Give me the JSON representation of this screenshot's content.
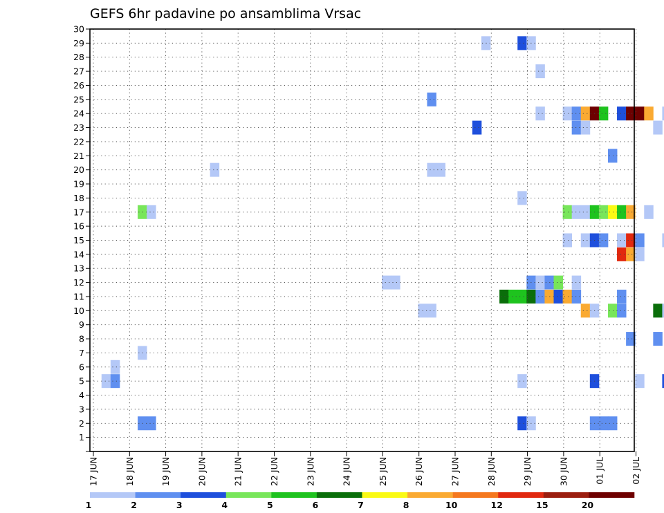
{
  "chart_data": {
    "type": "heatmap",
    "title": "GEFS 6hr padavine po ansamblima Vrsac",
    "xlabel": "",
    "ylabel": "",
    "x_tick_labels": [
      "17 JUN",
      "18 JUN",
      "19 JUN",
      "20 JUN",
      "21 JUN",
      "22 JUN",
      "23 JUN",
      "24 JUN",
      "25 JUN",
      "26 JUN",
      "27 JUN",
      "28 JUN",
      "29 JUN",
      "30 JUN",
      "01 JUL",
      "02 JUL"
    ],
    "x_range_days": [
      0,
      15
    ],
    "y_tick_labels": [
      "1",
      "2",
      "3",
      "4",
      "5",
      "6",
      "7",
      "8",
      "9",
      "10",
      "11",
      "12",
      "13",
      "14",
      "15",
      "16",
      "17",
      "18",
      "19",
      "20",
      "21",
      "22",
      "23",
      "24",
      "25",
      "26",
      "27",
      "28",
      "29",
      "30"
    ],
    "y_range": [
      0,
      30
    ],
    "grid": true,
    "colorbar": {
      "labels": [
        "1",
        "2",
        "3",
        "4",
        "5",
        "6",
        "7",
        "8",
        "10",
        "12",
        "15",
        "20"
      ],
      "colors": [
        "#b4c8f7",
        "#5f8ff0",
        "#1e4fdc",
        "#78e65a",
        "#1ec31e",
        "#0a6e0a",
        "#fafa14",
        "#faaa32",
        "#f5781e",
        "#e1280f",
        "#9b1e0f",
        "#6e0000"
      ]
    },
    "cells": [
      {
        "day": 10.85,
        "member": 29,
        "color": "#b4c8f7"
      },
      {
        "day": 11.85,
        "member": 29,
        "color": "#1e4fdc"
      },
      {
        "day": 12.1,
        "member": 29,
        "color": "#b4c8f7"
      },
      {
        "day": 12.35,
        "member": 27,
        "color": "#b4c8f7"
      },
      {
        "day": 9.35,
        "member": 25,
        "color": "#5f8ff0"
      },
      {
        "day": 12.35,
        "member": 24,
        "color": "#b4c8f7"
      },
      {
        "day": 13.1,
        "member": 24,
        "color": "#b4c8f7"
      },
      {
        "day": 13.35,
        "member": 24,
        "color": "#5f8ff0"
      },
      {
        "day": 13.6,
        "member": 24,
        "color": "#faaa32"
      },
      {
        "day": 13.85,
        "member": 24,
        "color": "#6e0000"
      },
      {
        "day": 14.1,
        "member": 24,
        "color": "#1ec31e"
      },
      {
        "day": 14.6,
        "member": 24,
        "color": "#1e4fdc"
      },
      {
        "day": 14.85,
        "member": 24,
        "color": "#6e0000"
      },
      {
        "day": 15.1,
        "member": 24,
        "color": "#6e0000"
      },
      {
        "day": 15.35,
        "member": 24,
        "color": "#faaa32"
      },
      {
        "day": 15.85,
        "member": 24,
        "color": "#b4c8f7"
      },
      {
        "day": 10.6,
        "member": 23,
        "color": "#1e4fdc"
      },
      {
        "day": 13.35,
        "member": 23,
        "color": "#5f8ff0"
      },
      {
        "day": 13.6,
        "member": 23,
        "color": "#b4c8f7"
      },
      {
        "day": 15.6,
        "member": 23,
        "color": "#b4c8f7"
      },
      {
        "day": 14.35,
        "member": 21,
        "color": "#5f8ff0"
      },
      {
        "day": 3.35,
        "member": 20,
        "color": "#b4c8f7"
      },
      {
        "day": 9.35,
        "member": 20,
        "color": "#b4c8f7"
      },
      {
        "day": 9.6,
        "member": 20,
        "color": "#b4c8f7"
      },
      {
        "day": 11.85,
        "member": 18,
        "color": "#b4c8f7"
      },
      {
        "day": 1.35,
        "member": 17,
        "color": "#78e65a"
      },
      {
        "day": 1.6,
        "member": 17,
        "color": "#b4c8f7"
      },
      {
        "day": 13.1,
        "member": 17,
        "color": "#78e65a"
      },
      {
        "day": 13.35,
        "member": 17,
        "color": "#b4c8f7"
      },
      {
        "day": 13.6,
        "member": 17,
        "color": "#b4c8f7"
      },
      {
        "day": 13.85,
        "member": 17,
        "color": "#1ec31e"
      },
      {
        "day": 14.1,
        "member": 17,
        "color": "#78e65a"
      },
      {
        "day": 14.35,
        "member": 17,
        "color": "#fafa14"
      },
      {
        "day": 14.6,
        "member": 17,
        "color": "#1ec31e"
      },
      {
        "day": 14.85,
        "member": 17,
        "color": "#faaa32"
      },
      {
        "day": 15.35,
        "member": 17,
        "color": "#b4c8f7"
      },
      {
        "day": 13.1,
        "member": 15,
        "color": "#b4c8f7"
      },
      {
        "day": 13.6,
        "member": 15,
        "color": "#b4c8f7"
      },
      {
        "day": 13.85,
        "member": 15,
        "color": "#1e4fdc"
      },
      {
        "day": 14.1,
        "member": 15,
        "color": "#5f8ff0"
      },
      {
        "day": 14.6,
        "member": 15,
        "color": "#b4c8f7"
      },
      {
        "day": 14.85,
        "member": 15,
        "color": "#e1280f"
      },
      {
        "day": 15.1,
        "member": 15,
        "color": "#5f8ff0"
      },
      {
        "day": 15.85,
        "member": 15,
        "color": "#b4c8f7"
      },
      {
        "day": 14.6,
        "member": 14,
        "color": "#e1280f"
      },
      {
        "day": 14.85,
        "member": 14,
        "color": "#faaa32"
      },
      {
        "day": 15.1,
        "member": 14,
        "color": "#b4c8f7"
      },
      {
        "day": 8.1,
        "member": 12,
        "color": "#b4c8f7"
      },
      {
        "day": 8.35,
        "member": 12,
        "color": "#b4c8f7"
      },
      {
        "day": 12.1,
        "member": 12,
        "color": "#5f8ff0"
      },
      {
        "day": 12.35,
        "member": 12,
        "color": "#b4c8f7"
      },
      {
        "day": 12.6,
        "member": 12,
        "color": "#5f8ff0"
      },
      {
        "day": 12.85,
        "member": 12,
        "color": "#78e65a"
      },
      {
        "day": 13.35,
        "member": 12,
        "color": "#b4c8f7"
      },
      {
        "day": 11.35,
        "member": 11,
        "color": "#0a6e0a"
      },
      {
        "day": 11.6,
        "member": 11,
        "color": "#1ec31e"
      },
      {
        "day": 11.85,
        "member": 11,
        "color": "#1ec31e"
      },
      {
        "day": 12.1,
        "member": 11,
        "color": "#0a6e0a"
      },
      {
        "day": 12.35,
        "member": 11,
        "color": "#5f8ff0"
      },
      {
        "day": 12.6,
        "member": 11,
        "color": "#faaa32"
      },
      {
        "day": 12.85,
        "member": 11,
        "color": "#1e4fdc"
      },
      {
        "day": 13.1,
        "member": 11,
        "color": "#faaa32"
      },
      {
        "day": 13.35,
        "member": 11,
        "color": "#5f8ff0"
      },
      {
        "day": 14.6,
        "member": 11,
        "color": "#5f8ff0"
      },
      {
        "day": 9.1,
        "member": 10,
        "color": "#b4c8f7"
      },
      {
        "day": 9.35,
        "member": 10,
        "color": "#b4c8f7"
      },
      {
        "day": 13.6,
        "member": 10,
        "color": "#faaa32"
      },
      {
        "day": 13.85,
        "member": 10,
        "color": "#b4c8f7"
      },
      {
        "day": 14.35,
        "member": 10,
        "color": "#78e65a"
      },
      {
        "day": 14.6,
        "member": 10,
        "color": "#5f8ff0"
      },
      {
        "day": 15.6,
        "member": 10,
        "color": "#0a6e0a"
      },
      {
        "day": 15.85,
        "member": 10,
        "color": "#b4c8f7"
      },
      {
        "day": 14.85,
        "member": 8,
        "color": "#5f8ff0"
      },
      {
        "day": 15.6,
        "member": 8,
        "color": "#5f8ff0"
      },
      {
        "day": 1.35,
        "member": 7,
        "color": "#b4c8f7"
      },
      {
        "day": 0.6,
        "member": 6,
        "color": "#b4c8f7"
      },
      {
        "day": 0.35,
        "member": 5,
        "color": "#b4c8f7"
      },
      {
        "day": 0.6,
        "member": 5,
        "color": "#5f8ff0"
      },
      {
        "day": 11.85,
        "member": 5,
        "color": "#b4c8f7"
      },
      {
        "day": 13.85,
        "member": 5,
        "color": "#1e4fdc"
      },
      {
        "day": 15.1,
        "member": 5,
        "color": "#b4c8f7"
      },
      {
        "day": 15.85,
        "member": 5,
        "color": "#1e4fdc"
      },
      {
        "day": 1.35,
        "member": 2,
        "color": "#5f8ff0"
      },
      {
        "day": 1.6,
        "member": 2,
        "color": "#5f8ff0"
      },
      {
        "day": 11.85,
        "member": 2,
        "color": "#1e4fdc"
      },
      {
        "day": 12.1,
        "member": 2,
        "color": "#b4c8f7"
      },
      {
        "day": 13.85,
        "member": 2,
        "color": "#5f8ff0"
      },
      {
        "day": 14.1,
        "member": 2,
        "color": "#5f8ff0"
      },
      {
        "day": 14.35,
        "member": 2,
        "color": "#5f8ff0"
      }
    ]
  }
}
